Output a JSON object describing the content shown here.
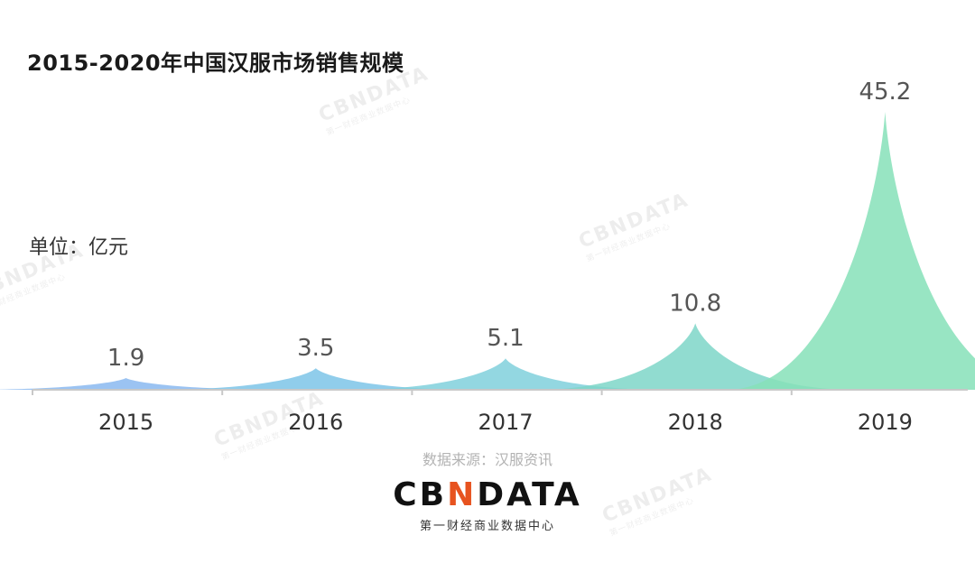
{
  "title": "2015-2020年中国汉服市场销售规模",
  "unit": "单位：亿元",
  "source": "数据来源：汉服资讯",
  "brand": {
    "name_pre": "CB",
    "name_accent": "N",
    "name_post": "DATA",
    "subtitle": "第一财经商业数据中心"
  },
  "watermark": {
    "text": "CBNDATA",
    "sub": "第一财经商业数据中心"
  },
  "colors": {
    "2015": "#8ab8f0",
    "2016": "#7cc4e8",
    "2017": "#80d0dc",
    "2018": "#7ed6c8",
    "2019": "#86e0b8",
    "axis": "#c8c8c8",
    "label": "#555555"
  },
  "chart_data": {
    "type": "area",
    "categories": [
      "2015",
      "2016",
      "2017",
      "2018",
      "2019"
    ],
    "values": [
      1.9,
      3.5,
      5.1,
      10.8,
      45.2
    ],
    "data_labels": [
      "1.9",
      "3.5",
      "5.1",
      "10.8",
      "45.2"
    ],
    "ylim": [
      0,
      45.2
    ],
    "grid": false,
    "legend": "none"
  }
}
